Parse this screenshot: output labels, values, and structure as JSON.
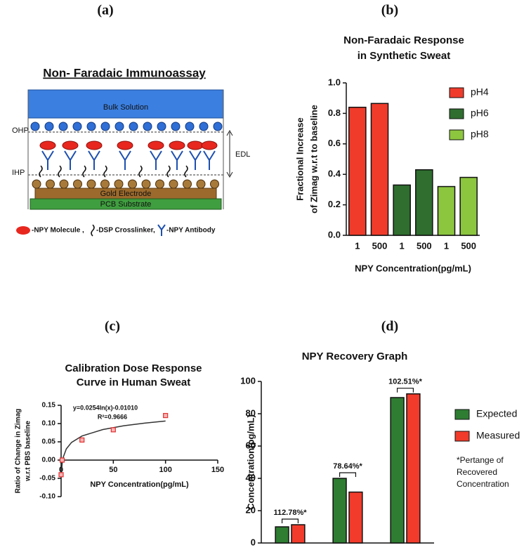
{
  "diagram": {
    "panel": "(a)",
    "title": "Non- Faradaic Immunoassay",
    "labels": {
      "bulk": "Bulk Solution",
      "ohp": "OHP",
      "ihp": "IHP",
      "edl": "EDL",
      "gold": "Gold Electrode",
      "pcb": "PCB Substrate"
    },
    "legend": [
      "-NPY Molecule ,",
      "-DSP Crosslinker,",
      "-NPY Antibody"
    ]
  },
  "chart_data": [
    {
      "panel": "(b)",
      "type": "bar",
      "title": [
        "Non-Faradaic Response",
        "in Synthetic Sweat"
      ],
      "xlabel": "NPY Concentration(pg/mL)",
      "ylabel": [
        "Fractional Increase",
        "of Zimag w.r.t to baseline"
      ],
      "categories": [
        "1",
        "500",
        "1",
        "500",
        "1",
        "500"
      ],
      "series": [
        {
          "name": "pH4",
          "color": "#f03b2b",
          "values": [
            0.84,
            0.865,
            null,
            null,
            null,
            null
          ]
        },
        {
          "name": "pH6",
          "color": "#2f6e2f",
          "values": [
            null,
            null,
            0.33,
            0.43,
            null,
            null
          ]
        },
        {
          "name": "pH8",
          "color": "#8cc63f",
          "values": [
            null,
            null,
            null,
            null,
            0.32,
            0.38
          ]
        }
      ],
      "ylim": [
        0,
        1
      ],
      "yticks": [
        {
          "value": 0,
          "label": "0.0"
        },
        0.2,
        0.4,
        0.6,
        0.8,
        {
          "value": 1,
          "label": "1.0"
        }
      ],
      "legend": "right"
    },
    {
      "panel": "(c)",
      "type": "scatter",
      "title": [
        "Calibration Dose Response",
        "Curve in Human  Sweat"
      ],
      "xlabel": "NPY Concentration(pg/mL)",
      "ylabel": [
        "Ratio of Change in Zimag",
        "w.r.t PBS baseline"
      ],
      "x": [
        0,
        1,
        20,
        50,
        100
      ],
      "values": [
        -0.04,
        0,
        0.055,
        0.083,
        0.122
      ],
      "color": "#e03030",
      "fit": {
        "x": [
          0.5,
          1,
          2,
          5,
          10,
          20,
          40,
          60,
          80,
          100
        ],
        "y": [
          -0.0277,
          -0.0101,
          0.0075,
          0.0308,
          0.0484,
          0.066,
          0.0836,
          0.0939,
          0.1012,
          0.1069
        ]
      },
      "annotations": [
        "y=0.0254ln(x)-0.01010",
        "R²=0.9666"
      ],
      "xlim": [
        0,
        150
      ],
      "xticks": [
        0,
        50,
        100,
        150
      ],
      "ylim": [
        -0.1,
        0.15
      ],
      "yticks": [
        {
          "value": -0.1,
          "label": "-0.10"
        },
        {
          "value": -0.05,
          "label": "-0.05"
        },
        {
          "value": 0,
          "label": "0.00"
        },
        {
          "value": 0.05,
          "label": "0.05"
        },
        {
          "value": 0.1,
          "label": "0.10"
        },
        {
          "value": 0.15,
          "label": "0.15"
        }
      ]
    },
    {
      "panel": "(d)",
      "type": "bar",
      "title": [
        "NPY Recovery Graph"
      ],
      "ylabel": [
        "Concentration(pg/mL)"
      ],
      "categories": [
        null,
        null,
        null
      ],
      "series": [
        {
          "name": "Expected",
          "color": "#2e7d32",
          "values": [
            10,
            40,
            90
          ]
        },
        {
          "name": "Measured",
          "color": "#f23b2b",
          "values": [
            11.3,
            31.5,
            92.3
          ]
        }
      ],
      "annotations": [
        "112.78%*",
        "78.64%*",
        "102.51%*"
      ],
      "note": [
        "*Pertange of",
        "Recovered",
        "Concentration"
      ],
      "ylim": [
        0,
        100
      ],
      "yticks": [
        0,
        20,
        40,
        60,
        80,
        100
      ],
      "legend": "right"
    }
  ]
}
